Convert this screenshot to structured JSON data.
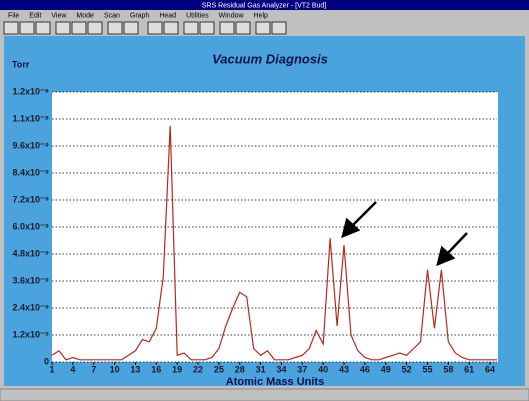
{
  "window": {
    "title": "SRS Residual Gas Analyzer - [VT2 Bud]",
    "menu": [
      "File",
      "Edit",
      "View",
      "Mode",
      "Scan",
      "Graph",
      "Head",
      "Utilities",
      "Window",
      "Help"
    ]
  },
  "chart_data": {
    "type": "line",
    "title": "Vacuum Diagnosis",
    "y_label": "Torr",
    "x_label": "Atomic Mass Units",
    "x": [
      1,
      2,
      3,
      4,
      5,
      6,
      7,
      8,
      9,
      10,
      11,
      12,
      13,
      14,
      15,
      16,
      17,
      18,
      19,
      20,
      21,
      22,
      23,
      24,
      25,
      26,
      27,
      28,
      29,
      30,
      31,
      32,
      33,
      34,
      35,
      36,
      37,
      38,
      39,
      40,
      41,
      42,
      43,
      44,
      45,
      46,
      47,
      48,
      49,
      50,
      51,
      52,
      53,
      54,
      55,
      56,
      57,
      58,
      59,
      60,
      61,
      62,
      63,
      64,
      65
    ],
    "series": [
      {
        "color": "#b8281e",
        "values": [
          3e-10,
          5e-10,
          1e-10,
          2e-10,
          1e-10,
          1e-10,
          1e-10,
          1e-10,
          1e-10,
          1e-10,
          1e-10,
          3e-10,
          5e-10,
          1e-09,
          9e-10,
          1.5e-09,
          3.8e-09,
          1.05e-08,
          3e-10,
          4e-10,
          1e-10,
          1e-10,
          1e-10,
          2e-10,
          6e-10,
          1.6e-09,
          2.4e-09,
          3.1e-09,
          2.9e-09,
          6e-10,
          3e-10,
          5e-10,
          1e-10,
          1e-10,
          1e-10,
          2e-10,
          3e-10,
          6e-10,
          1.4e-09,
          8e-10,
          5.5e-09,
          1.6e-09,
          5.2e-09,
          1.2e-09,
          5e-10,
          2e-10,
          1e-10,
          1e-10,
          2e-10,
          3e-10,
          4e-10,
          3e-10,
          6e-10,
          9e-10,
          4.1e-09,
          1.5e-09,
          4.1e-09,
          9e-10,
          4e-10,
          2e-10,
          1e-10,
          1e-10,
          1e-10,
          1e-10,
          1e-10
        ]
      }
    ],
    "xlim": [
      1,
      65
    ],
    "xticks": [
      1,
      4,
      7,
      10,
      13,
      16,
      19,
      22,
      25,
      28,
      31,
      34,
      37,
      40,
      43,
      46,
      49,
      52,
      55,
      58,
      61,
      64
    ],
    "ylim": [
      0,
      1.2e-08
    ],
    "yticks": [
      0,
      {
        "value": 1.2e-09,
        "label": "1.2x10⁻⁹"
      },
      {
        "value": 2.4e-09,
        "label": "2.4x10⁻⁹"
      },
      {
        "value": 3.6e-09,
        "label": "3.6x10⁻⁹"
      },
      {
        "value": 4.8e-09,
        "label": "4.8x10⁻⁹"
      },
      {
        "value": 6e-09,
        "label": "6.0x10⁻⁹"
      },
      {
        "value": 7.2e-09,
        "label": "7.2x10⁻⁹"
      },
      {
        "value": 8.4e-09,
        "label": "8.4x10⁻⁹"
      },
      {
        "value": 9.6e-09,
        "label": "9.6x10⁻⁹"
      },
      {
        "value": 1.08e-08,
        "label": "1.1x10⁻⁸"
      },
      {
        "value": 1.2e-08,
        "label": "1.2x10⁻⁸"
      }
    ],
    "grid": true
  }
}
